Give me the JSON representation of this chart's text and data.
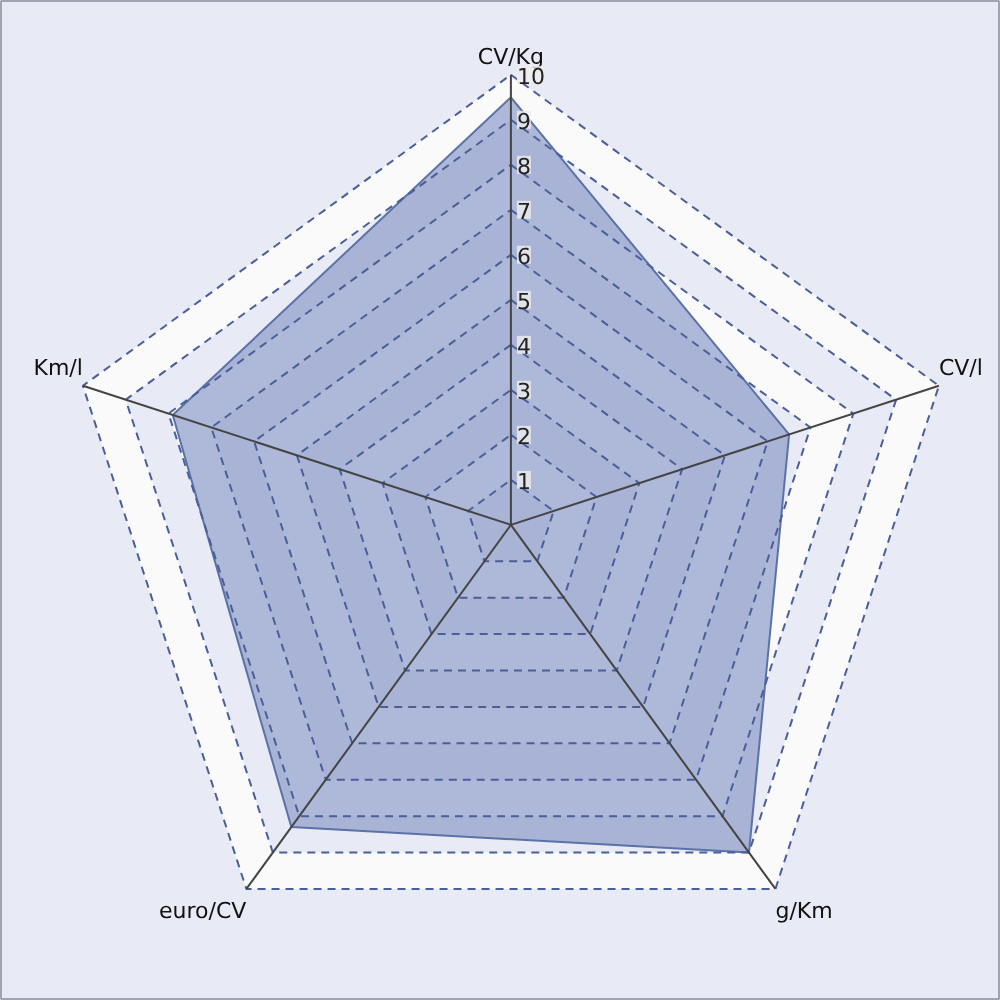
{
  "chart_data": {
    "type": "radar",
    "categories": [
      "CV/Kg",
      "CV/l",
      "g/Km",
      "euro/CV",
      "Km/l"
    ],
    "series": [
      {
        "color": "#8595c4",
        "values": [
          9.5,
          6.5,
          9.0,
          8.3,
          7.9
        ]
      }
    ],
    "ylim": [
      0,
      10
    ],
    "yticks": [
      1,
      2,
      3,
      4,
      5,
      6,
      7,
      8,
      9,
      10
    ],
    "grid": true
  }
}
